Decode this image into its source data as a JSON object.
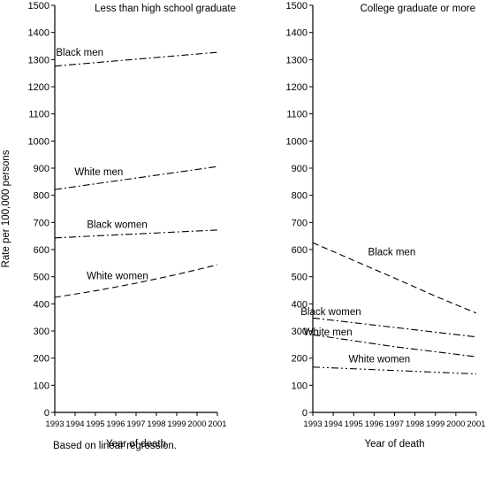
{
  "note": "Based on linear regression.",
  "chart_data": [
    {
      "type": "line",
      "title": "Less than high school graduate",
      "xlabel": "Year of death",
      "ylabel": "Rate per 100,000 persons",
      "xlim": [
        1993,
        2001
      ],
      "ylim": [
        0,
        1500
      ],
      "x_ticks": [
        "1993",
        "1994",
        "1995",
        "1996",
        "1997",
        "1998",
        "1999",
        "2000",
        "2001"
      ],
      "y_ticks": [
        "0",
        "100",
        "200",
        "300",
        "400",
        "500",
        "600",
        "700",
        "800",
        "900",
        "1000",
        "1100",
        "1200",
        "1300",
        "1400",
        "1500"
      ],
      "grid": false,
      "series": [
        {
          "name": "Black men",
          "x": [
            1993,
            2001
          ],
          "y": [
            1276,
            1327
          ],
          "dash": "dashdot"
        },
        {
          "name": "White men",
          "x": [
            1993,
            2001
          ],
          "y": [
            821,
            906
          ],
          "dash": "dashdot"
        },
        {
          "name": "Black women",
          "x": [
            1993,
            2001
          ],
          "y": [
            643,
            672
          ],
          "dash": "dashdot"
        },
        {
          "name": "White women",
          "x": [
            1993,
            1995,
            1997,
            1999,
            2001
          ],
          "y": [
            424,
            448,
            476,
            508,
            544
          ],
          "dash": "dashed"
        }
      ]
    },
    {
      "type": "line",
      "title": "College graduate or more",
      "xlabel": "Year of death",
      "ylabel": "",
      "xlim": [
        1993,
        2001
      ],
      "ylim": [
        0,
        1500
      ],
      "x_ticks": [
        "1993",
        "1994",
        "1995",
        "1996",
        "1997",
        "1998",
        "1999",
        "2000",
        "2001"
      ],
      "y_ticks": [
        "0",
        "100",
        "200",
        "300",
        "400",
        "500",
        "600",
        "700",
        "800",
        "900",
        "1000",
        "1100",
        "1200",
        "1300",
        "1400",
        "1500"
      ],
      "grid": false,
      "series": [
        {
          "name": "Black men",
          "x": [
            1993,
            1995,
            1997,
            1999,
            2001
          ],
          "y": [
            625,
            560,
            495,
            428,
            366
          ],
          "dash": "dashed"
        },
        {
          "name": "Black women",
          "x": [
            1993,
            2001
          ],
          "y": [
            348,
            278
          ],
          "dash": "dashdot"
        },
        {
          "name": "White men",
          "x": [
            1993,
            1997,
            2001
          ],
          "y": [
            286,
            242,
            205
          ],
          "dash": "dashdot"
        },
        {
          "name": "White women",
          "x": [
            1993,
            2001
          ],
          "y": [
            167,
            142
          ],
          "dash": "dashdotdot"
        }
      ]
    }
  ]
}
